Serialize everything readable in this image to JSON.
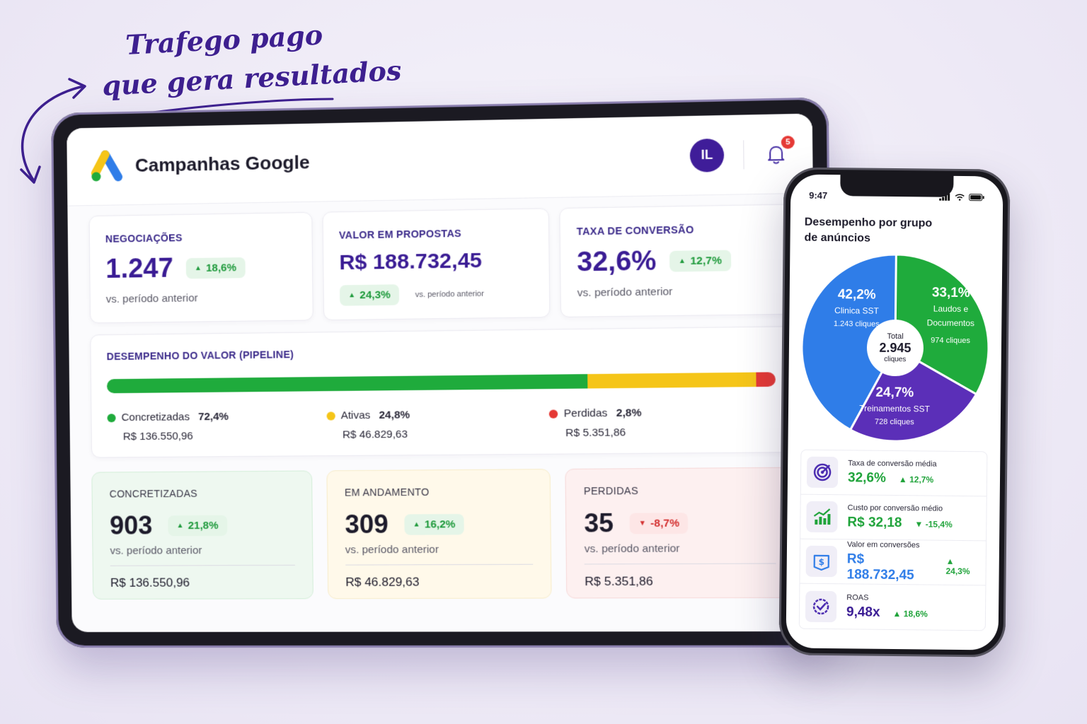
{
  "headline": {
    "line1": "Trafego pago",
    "line2": "que gera resultados"
  },
  "tablet": {
    "title": "Campanhas Google",
    "avatar": "IL",
    "notifications": "5",
    "kpis": [
      {
        "label": "NEGOCIAÇÕES",
        "value": "1.247",
        "delta": "18,6%",
        "sub": "vs. período anterior"
      },
      {
        "label": "VALOR EM PROPOSTAS",
        "value": "R$ 188.732,45",
        "delta": "24,3%",
        "sub": "vs. período anterior"
      },
      {
        "label": "TAXA DE CONVERSÃO",
        "value": "32,6%",
        "delta": "12,7%",
        "sub": "vs. período anterior"
      }
    ],
    "pipeline": {
      "label": "DESEMPENHO DO VALOR (PIPELINE)",
      "segments": [
        {
          "name": "Concretizadas",
          "pct": "72,4%",
          "fraction": 0.724,
          "amount": "R$ 136.550,96",
          "color": "#1fab3c"
        },
        {
          "name": "Ativas",
          "pct": "24,8%",
          "fraction": 0.248,
          "amount": "R$ 46.829,63",
          "color": "#f5c518"
        },
        {
          "name": "Perdidas",
          "pct": "2,8%",
          "fraction": 0.028,
          "amount": "R$ 5.351,86",
          "color": "#e53935"
        }
      ]
    },
    "status": [
      {
        "label": "CONCRETIZADAS",
        "value": "903",
        "delta": "21,8%",
        "sub": "vs. período anterior",
        "amount": "R$ 136.550,96"
      },
      {
        "label": "EM ANDAMENTO",
        "value": "309",
        "delta": "16,2%",
        "sub": "vs. período anterior",
        "amount": "R$ 46.829,63"
      },
      {
        "label": "PERDIDAS",
        "value": "35",
        "delta": "-8,7%",
        "sub": "vs. período anterior",
        "amount": "R$ 5.351,86"
      }
    ]
  },
  "phone": {
    "time": "9:47",
    "title_line1": "Desempenho por grupo",
    "title_line2": "de anúncios",
    "pie": {
      "center_label": "Total",
      "center_value": "2.945",
      "center_unit": "cliques",
      "slices": [
        {
          "pct": "42,2%",
          "name": "Clinica SST",
          "clicks": "1.243 cliques",
          "fraction": 0.422,
          "color": "#2f7de8"
        },
        {
          "pct": "33,1%",
          "name_l1": "Laudos e",
          "name_l2": "Documentos",
          "clicks": "974 cliques",
          "fraction": 0.331,
          "color": "#1fab3c"
        },
        {
          "pct": "24,7%",
          "name": "Treinamentos SST",
          "clicks": "728 cliques",
          "fraction": 0.247,
          "color": "#5b2fb8"
        }
      ]
    },
    "metrics": [
      {
        "label": "Taxa de conversão média",
        "value": "32,6%",
        "delta": "12,7%",
        "value_color": "#1fa33a",
        "icon": "target-icon"
      },
      {
        "label": "Custo por conversão médio",
        "value": "R$ 32,18",
        "delta": "-15,4%",
        "value_color": "#1fa33a",
        "icon": "chart-up-icon"
      },
      {
        "label": "Valor em conversões",
        "value": "R$ 188.732,45",
        "delta": "24,3%",
        "value_color": "#2f7de8",
        "icon": "dollar-icon"
      },
      {
        "label": "ROAS",
        "value": "9,48x",
        "delta": "18,6%",
        "value_color": "#3a1c94",
        "icon": "check-badge-icon"
      }
    ]
  }
}
